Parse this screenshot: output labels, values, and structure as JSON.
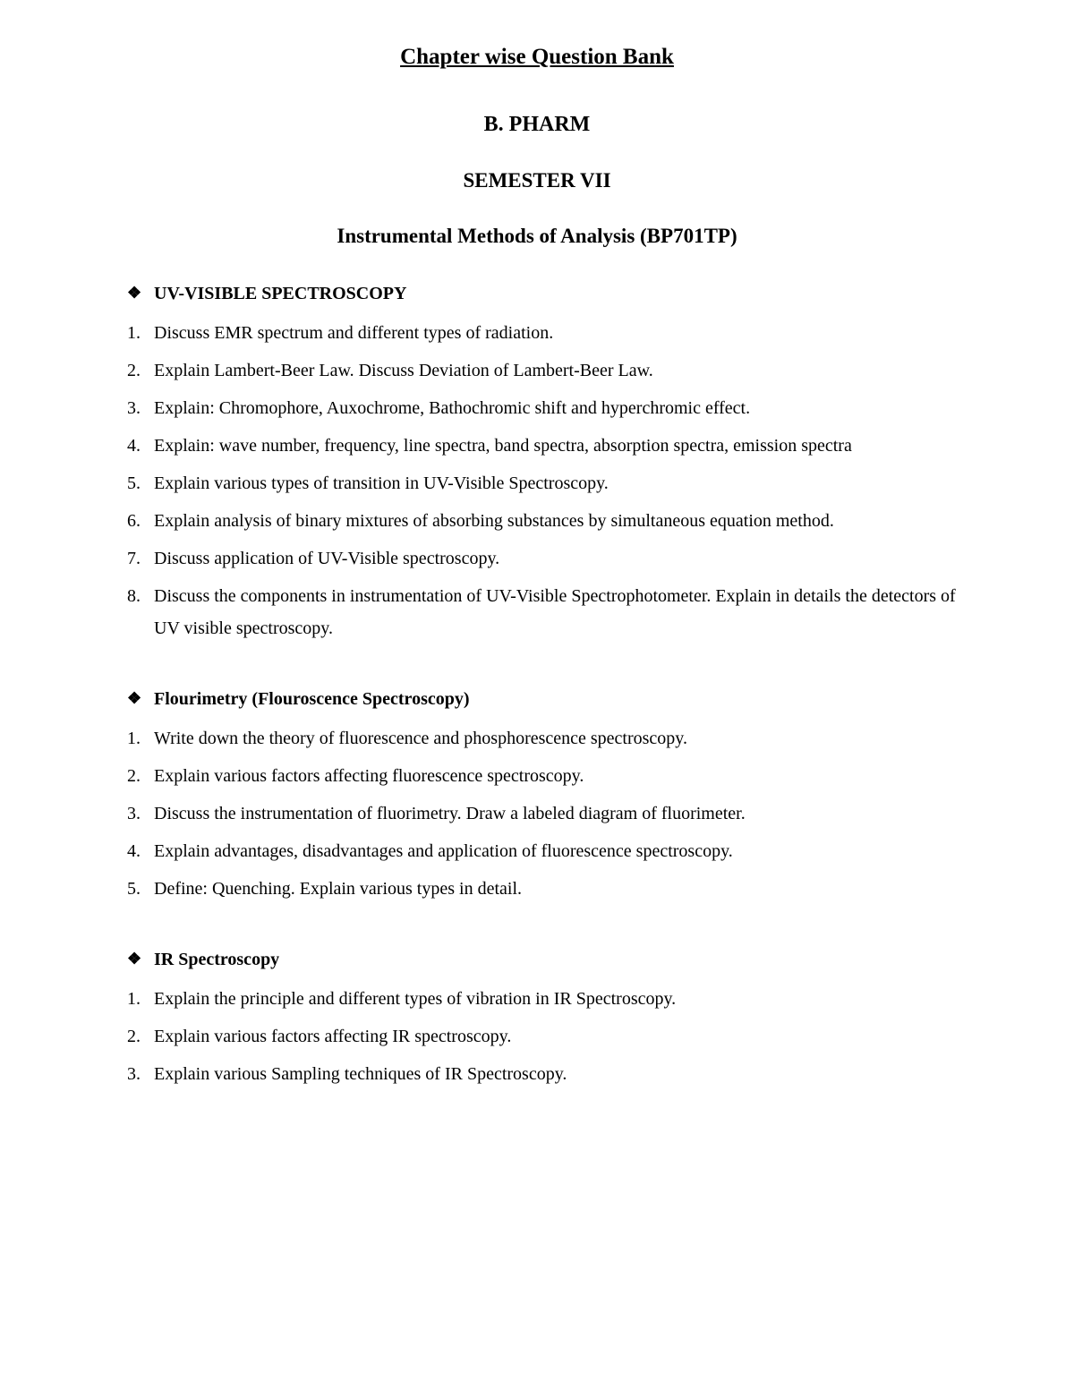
{
  "main_title": "Chapter wise Question Bank",
  "sub_title": "B. PHARM",
  "semester": "SEMESTER VII",
  "course": "Instrumental Methods of Analysis (BP701TP)",
  "sections": [
    {
      "heading": "UV-VISIBLE SPECTROSCOPY",
      "questions": [
        "Discuss EMR spectrum and different types of radiation.",
        "Explain Lambert-Beer Law. Discuss Deviation of Lambert-Beer Law.",
        "Explain: Chromophore, Auxochrome, Bathochromic shift and hyperchromic effect.",
        "Explain: wave number, frequency, line spectra, band spectra, absorption spectra, emission spectra",
        "Explain various types of transition in UV-Visible Spectroscopy.",
        "Explain analysis of binary mixtures of absorbing substances by simultaneous equation method.",
        "Discuss application of UV-Visible spectroscopy.",
        "Discuss the components in instrumentation of UV-Visible Spectrophotometer. Explain in details the detectors of UV visible spectroscopy."
      ]
    },
    {
      "heading": "Flourimetry (Flouroscence Spectroscopy)",
      "questions": [
        "Write down the theory of fluorescence and phosphorescence spectroscopy.",
        " Explain various factors affecting fluorescence spectroscopy.",
        "Discuss the instrumentation of fluorimetry. Draw a labeled diagram of fluorimeter.",
        "Explain advantages, disadvantages and application of fluorescence spectroscopy.",
        "Define: Quenching. Explain various types in detail."
      ]
    },
    {
      "heading": "IR Spectroscopy",
      "questions": [
        "Explain the principle and different types of vibration in IR Spectroscopy.",
        "Explain various factors affecting IR spectroscopy.",
        "Explain various Sampling techniques of IR Spectroscopy."
      ]
    }
  ]
}
